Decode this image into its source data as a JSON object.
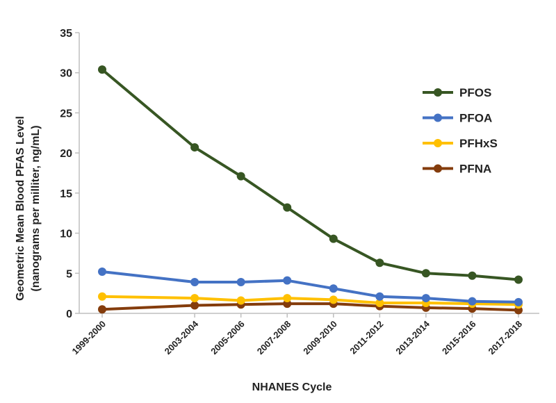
{
  "chart_data": {
    "type": "line",
    "title": "",
    "xlabel": "NHANES Cycle",
    "ylabel_line1": "Geometric Mean Blood PFAS Level",
    "ylabel_line2": "(nanograms per milliter, ng/mL)",
    "ylim": [
      0,
      35
    ],
    "yticks": [
      0,
      5,
      10,
      15,
      20,
      25,
      30,
      35
    ],
    "x": [
      1999,
      2003,
      2005,
      2007,
      2009,
      2011,
      2013,
      2015,
      2017
    ],
    "categories": [
      "1999-2000",
      "2003-2004",
      "2005-2006",
      "2007-2008",
      "2009-2010",
      "2011-2012",
      "2013-2014",
      "2015-2016",
      "2017-2018"
    ],
    "grid": false,
    "legend_position": "right",
    "series": [
      {
        "name": "PFOS",
        "color": "#375623",
        "values": [
          30.4,
          20.7,
          17.1,
          13.2,
          9.3,
          6.3,
          5.0,
          4.7,
          4.2
        ]
      },
      {
        "name": "PFOA",
        "color": "#4472C4",
        "values": [
          5.2,
          3.9,
          3.9,
          4.1,
          3.1,
          2.1,
          1.9,
          1.5,
          1.4
        ]
      },
      {
        "name": "PFHxS",
        "color": "#FFC000",
        "values": [
          2.1,
          1.9,
          1.6,
          1.9,
          1.7,
          1.3,
          1.3,
          1.2,
          1.1
        ]
      },
      {
        "name": "PFNA",
        "color": "#843C0C",
        "values": [
          0.5,
          1.0,
          1.1,
          1.2,
          1.2,
          0.9,
          0.7,
          0.6,
          0.4
        ]
      }
    ]
  }
}
